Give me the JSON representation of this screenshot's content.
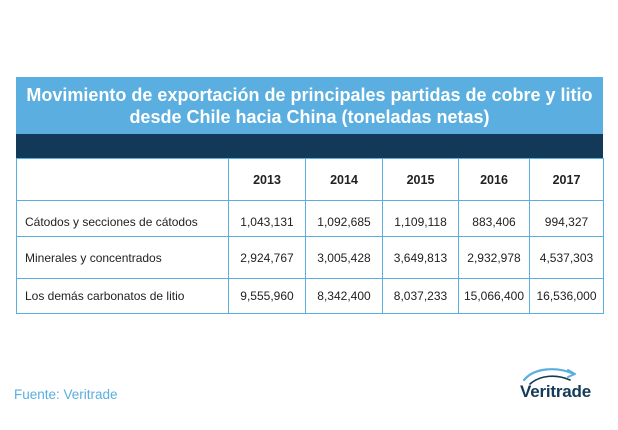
{
  "title": "Movimiento de exportación de principales partidas de cobre y litio desde Chile hacia China (toneladas netas)",
  "table": {
    "headers": [
      "",
      "2013",
      "2014",
      "2015",
      "2016",
      "2017"
    ],
    "rows": [
      {
        "label": "Cátodos y secciones de cátodos",
        "values": [
          "1,043,131",
          "1,092,685",
          "1,109,118",
          "883,406",
          "994,327"
        ]
      },
      {
        "label": "Minerales y concentrados",
        "values": [
          "2,924,767",
          "3,005,428",
          "3,649,813",
          "2,932,978",
          "4,537,303"
        ]
      },
      {
        "label": "Los demás carbonatos de litio",
        "values": [
          "9,555,960",
          "8,342,400",
          "8,037,233",
          "15,066,400",
          "16,536,000"
        ]
      }
    ]
  },
  "source": "Fuente: Veritrade",
  "logo": {
    "text": "Veritrade",
    "icon": "veritrade-swoosh-icon"
  },
  "colors": {
    "title_band": "#5aaee0",
    "dark_band": "#123a58",
    "border": "#5aaee0",
    "source_text": "#5aaee0",
    "logo_text": "#123a58"
  }
}
